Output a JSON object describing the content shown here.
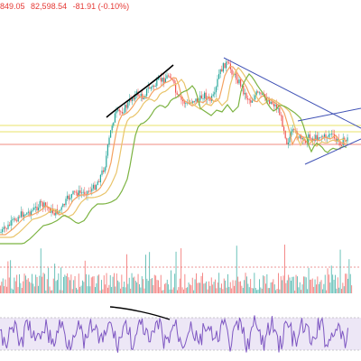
{
  "legend": {
    "close_value": "849.05",
    "high_value": "82,598.54",
    "change": "-81.91 (-0.10%)"
  },
  "colors": {
    "up_candle": "#26a69a",
    "down_candle": "#ef5350",
    "ma_fast": "#f4a261",
    "ma_mid": "#e9c46a",
    "ma_slow": "#7cb342",
    "trendline": "#3f51b5",
    "drawing": "#000000",
    "rsi_line": "#7e57c2",
    "rsi_band": "#ede7f6",
    "hline_yellow": "#e9e36a",
    "hline_red": "#f28b82"
  },
  "chart_data": {
    "type": "candlestick",
    "price_path": [
      [
        0,
        258
      ],
      [
        8,
        252
      ],
      [
        15,
        245
      ],
      [
        22,
        238
      ],
      [
        30,
        236
      ],
      [
        38,
        232
      ],
      [
        45,
        226
      ],
      [
        52,
        230
      ],
      [
        60,
        236
      ],
      [
        68,
        232
      ],
      [
        75,
        220
      ],
      [
        82,
        214
      ],
      [
        90,
        214
      ],
      [
        97,
        212
      ],
      [
        104,
        208
      ],
      [
        110,
        198
      ],
      [
        116,
        184
      ],
      [
        120,
        160
      ],
      [
        124,
        138
      ],
      [
        128,
        126
      ],
      [
        134,
        124
      ],
      [
        140,
        118
      ],
      [
        146,
        108
      ],
      [
        152,
        104
      ],
      [
        158,
        108
      ],
      [
        164,
        98
      ],
      [
        170,
        96
      ],
      [
        176,
        90
      ],
      [
        182,
        88
      ],
      [
        188,
        82
      ],
      [
        192,
        92
      ],
      [
        196,
        108
      ],
      [
        202,
        112
      ],
      [
        208,
        116
      ],
      [
        214,
        110
      ],
      [
        220,
        112
      ],
      [
        226,
        104
      ],
      [
        232,
        112
      ],
      [
        238,
        106
      ],
      [
        242,
        84
      ],
      [
        246,
        76
      ],
      [
        250,
        70
      ],
      [
        254,
        74
      ],
      [
        260,
        84
      ],
      [
        266,
        92
      ],
      [
        272,
        106
      ],
      [
        278,
        112
      ],
      [
        284,
        104
      ],
      [
        290,
        106
      ],
      [
        296,
        110
      ],
      [
        302,
        114
      ],
      [
        308,
        120
      ],
      [
        314,
        140
      ],
      [
        318,
        158
      ],
      [
        324,
        146
      ],
      [
        330,
        150
      ],
      [
        336,
        158
      ],
      [
        342,
        152
      ],
      [
        348,
        154
      ],
      [
        354,
        150
      ],
      [
        360,
        152
      ],
      [
        366,
        148
      ],
      [
        372,
        156
      ],
      [
        378,
        158
      ],
      [
        384,
        154
      ]
    ],
    "volume_panel": {
      "baseline": 0,
      "spikes": "random-like"
    },
    "rsi_panel": {
      "overbought": 70,
      "oversold": 30
    }
  }
}
